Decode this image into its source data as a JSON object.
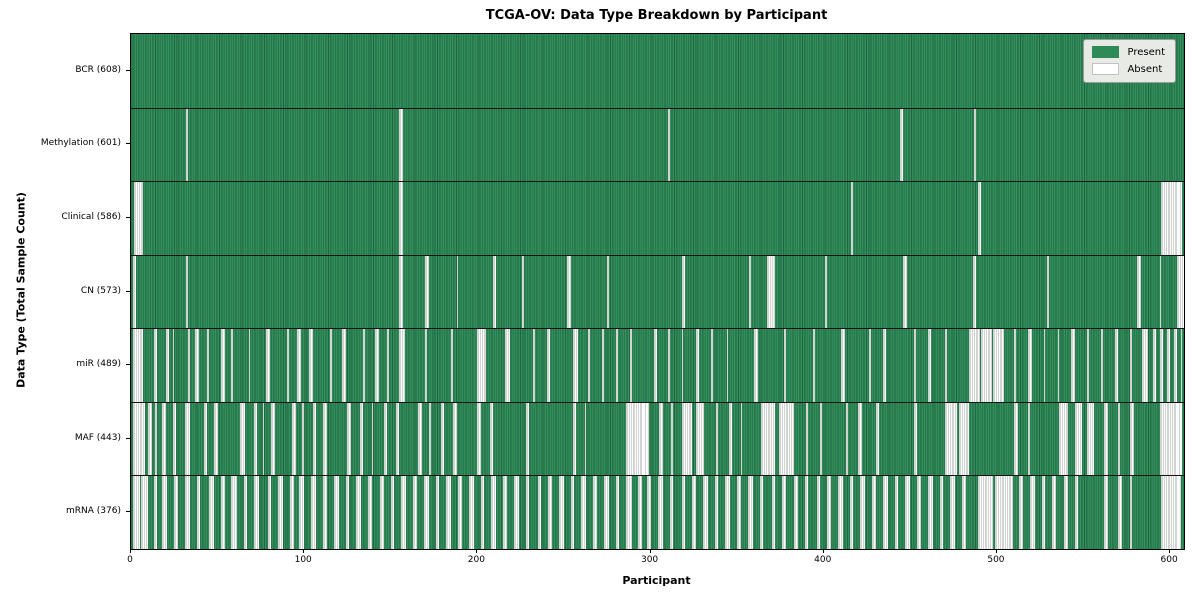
{
  "chart_data": {
    "type": "heatmap",
    "title": "TCGA-OV: Data Type Breakdown by Participant",
    "xlabel": "Participant",
    "ylabel": "Data Type (Total Sample Count)",
    "x_ticks": [
      0,
      100,
      200,
      300,
      400,
      500,
      600
    ],
    "x_range": [
      0,
      608
    ],
    "n_participants": 608,
    "grid": false,
    "legend_position": "upper right",
    "present_color": "#2e8b57",
    "absent_color": "#ffffff",
    "legend": [
      {
        "label": "Present",
        "color": "#2e8b57"
      },
      {
        "label": "Absent",
        "color": "#ffffff"
      }
    ],
    "rows": [
      {
        "label": "BCR (608)",
        "data_type": "BCR",
        "count": 608,
        "absent_ranges": []
      },
      {
        "label": "Methylation (601)",
        "data_type": "Methylation",
        "count": 601,
        "absent_ranges": [
          [
            32,
            32
          ],
          [
            155,
            156
          ],
          [
            310,
            310
          ],
          [
            444,
            445
          ],
          [
            487,
            487
          ]
        ]
      },
      {
        "label": "Clinical (586)",
        "data_type": "Clinical",
        "count": 586,
        "absent_ranges": [
          [
            2,
            6
          ],
          [
            155,
            156
          ],
          [
            416,
            416
          ],
          [
            489,
            490
          ],
          [
            595,
            606
          ]
        ]
      },
      {
        "label": "CN (573)",
        "data_type": "CN",
        "count": 573,
        "absent_ranges": [
          [
            1,
            2
          ],
          [
            32,
            32
          ],
          [
            155,
            156
          ],
          [
            170,
            171
          ],
          [
            188,
            188
          ],
          [
            209,
            210
          ],
          [
            226,
            226
          ],
          [
            252,
            253
          ],
          [
            275,
            275
          ],
          [
            318,
            319
          ],
          [
            357,
            357
          ],
          [
            367,
            371
          ],
          [
            401,
            401
          ],
          [
            446,
            447
          ],
          [
            486,
            487
          ],
          [
            529,
            529
          ],
          [
            581,
            582
          ],
          [
            594,
            594
          ],
          [
            604,
            607
          ]
        ]
      },
      {
        "label": "miR (489)",
        "data_type": "miR",
        "count": 489,
        "absent_ranges": [
          [
            1,
            6
          ],
          [
            13,
            14
          ],
          [
            20,
            21
          ],
          [
            24,
            24
          ],
          [
            33,
            33
          ],
          [
            37,
            38
          ],
          [
            44,
            44
          ],
          [
            52,
            53
          ],
          [
            58,
            58
          ],
          [
            68,
            68
          ],
          [
            78,
            79
          ],
          [
            90,
            90
          ],
          [
            96,
            97
          ],
          [
            103,
            104
          ],
          [
            115,
            115
          ],
          [
            122,
            123
          ],
          [
            134,
            134
          ],
          [
            141,
            142
          ],
          [
            148,
            148
          ],
          [
            155,
            157
          ],
          [
            170,
            170
          ],
          [
            185,
            185
          ],
          [
            200,
            204
          ],
          [
            216,
            218
          ],
          [
            232,
            232
          ],
          [
            240,
            241
          ],
          [
            255,
            257
          ],
          [
            264,
            264
          ],
          [
            272,
            272
          ],
          [
            280,
            280
          ],
          [
            288,
            288
          ],
          [
            302,
            303
          ],
          [
            310,
            310
          ],
          [
            318,
            318
          ],
          [
            326,
            327
          ],
          [
            335,
            335
          ],
          [
            344,
            344
          ],
          [
            360,
            361
          ],
          [
            377,
            377
          ],
          [
            394,
            394
          ],
          [
            410,
            411
          ],
          [
            426,
            426
          ],
          [
            434,
            435
          ],
          [
            452,
            452
          ],
          [
            460,
            461
          ],
          [
            470,
            470
          ],
          [
            484,
            489
          ],
          [
            491,
            496
          ],
          [
            498,
            503
          ],
          [
            510,
            510
          ],
          [
            518,
            519
          ],
          [
            527,
            527
          ],
          [
            535,
            535
          ],
          [
            543,
            544
          ],
          [
            552,
            552
          ],
          [
            560,
            560
          ],
          [
            568,
            569
          ],
          [
            577,
            577
          ],
          [
            584,
            586
          ],
          [
            590,
            591
          ],
          [
            594,
            595
          ],
          [
            598,
            599
          ],
          [
            602,
            603
          ],
          [
            606,
            606
          ]
        ]
      },
      {
        "label": "MAF (443)",
        "data_type": "MAF",
        "count": 443,
        "absent_ranges": [
          [
            1,
            7
          ],
          [
            10,
            11
          ],
          [
            14,
            14
          ],
          [
            18,
            19
          ],
          [
            24,
            25
          ],
          [
            31,
            33
          ],
          [
            42,
            43
          ],
          [
            48,
            49
          ],
          [
            63,
            65
          ],
          [
            71,
            72
          ],
          [
            76,
            76
          ],
          [
            81,
            82
          ],
          [
            93,
            94
          ],
          [
            99,
            99
          ],
          [
            105,
            106
          ],
          [
            111,
            112
          ],
          [
            125,
            126
          ],
          [
            132,
            133
          ],
          [
            139,
            139
          ],
          [
            146,
            147
          ],
          [
            153,
            154
          ],
          [
            166,
            167
          ],
          [
            172,
            172
          ],
          [
            179,
            180
          ],
          [
            186,
            187
          ],
          [
            200,
            201
          ],
          [
            207,
            208
          ],
          [
            228,
            229
          ],
          [
            255,
            256
          ],
          [
            262,
            262
          ],
          [
            286,
            298
          ],
          [
            305,
            306
          ],
          [
            312,
            312
          ],
          [
            318,
            323
          ],
          [
            326,
            330
          ],
          [
            338,
            338
          ],
          [
            345,
            346
          ],
          [
            352,
            352
          ],
          [
            364,
            371
          ],
          [
            374,
            382
          ],
          [
            390,
            390
          ],
          [
            398,
            398
          ],
          [
            413,
            413
          ],
          [
            420,
            421
          ],
          [
            430,
            431
          ],
          [
            452,
            453
          ],
          [
            470,
            476
          ],
          [
            478,
            483
          ],
          [
            510,
            511
          ],
          [
            518,
            518
          ],
          [
            536,
            540
          ],
          [
            545,
            548
          ],
          [
            552,
            555
          ],
          [
            562,
            563
          ],
          [
            570,
            570
          ],
          [
            577,
            578
          ],
          [
            594,
            606
          ]
        ]
      },
      {
        "label": "mRNA (376)",
        "data_type": "mRNA",
        "count": 376,
        "absent_ranges": [
          [
            1,
            4
          ],
          [
            6,
            9
          ],
          [
            13,
            14
          ],
          [
            18,
            20
          ],
          [
            25,
            26
          ],
          [
            31,
            33
          ],
          [
            38,
            39
          ],
          [
            45,
            47
          ],
          [
            52,
            53
          ],
          [
            58,
            60
          ],
          [
            65,
            66
          ],
          [
            71,
            73
          ],
          [
            79,
            80
          ],
          [
            85,
            87
          ],
          [
            92,
            93
          ],
          [
            97,
            99
          ],
          [
            104,
            106
          ],
          [
            111,
            112
          ],
          [
            117,
            119
          ],
          [
            124,
            125
          ],
          [
            130,
            132
          ],
          [
            137,
            138
          ],
          [
            144,
            145
          ],
          [
            150,
            151
          ],
          [
            156,
            158
          ],
          [
            163,
            164
          ],
          [
            169,
            171
          ],
          [
            176,
            177
          ],
          [
            182,
            184
          ],
          [
            189,
            190
          ],
          [
            195,
            197
          ],
          [
            202,
            203
          ],
          [
            208,
            210
          ],
          [
            215,
            216
          ],
          [
            221,
            223
          ],
          [
            228,
            229
          ],
          [
            235,
            236
          ],
          [
            241,
            242
          ],
          [
            247,
            249
          ],
          [
            254,
            255
          ],
          [
            260,
            262
          ],
          [
            267,
            268
          ],
          [
            273,
            275
          ],
          [
            280,
            281
          ],
          [
            286,
            288
          ],
          [
            293,
            294
          ],
          [
            298,
            299
          ],
          [
            304,
            306
          ],
          [
            311,
            312
          ],
          [
            318,
            319
          ],
          [
            324,
            325
          ],
          [
            330,
            332
          ],
          [
            337,
            338
          ],
          [
            343,
            345
          ],
          [
            350,
            351
          ],
          [
            356,
            358
          ],
          [
            363,
            364
          ],
          [
            370,
            371
          ],
          [
            376,
            377
          ],
          [
            383,
            384
          ],
          [
            389,
            390
          ],
          [
            396,
            397
          ],
          [
            402,
            403
          ],
          [
            408,
            410
          ],
          [
            415,
            416
          ],
          [
            421,
            423
          ],
          [
            428,
            429
          ],
          [
            434,
            436
          ],
          [
            441,
            442
          ],
          [
            447,
            449
          ],
          [
            454,
            455
          ],
          [
            460,
            462
          ],
          [
            467,
            468
          ],
          [
            473,
            475
          ],
          [
            480,
            481
          ],
          [
            489,
            497
          ],
          [
            499,
            508
          ],
          [
            513,
            514
          ],
          [
            519,
            521
          ],
          [
            526,
            527
          ],
          [
            532,
            533
          ],
          [
            539,
            540
          ],
          [
            545,
            546
          ],
          [
            562,
            563
          ],
          [
            570,
            571
          ],
          [
            577,
            577
          ],
          [
            595,
            605
          ]
        ]
      }
    ]
  }
}
